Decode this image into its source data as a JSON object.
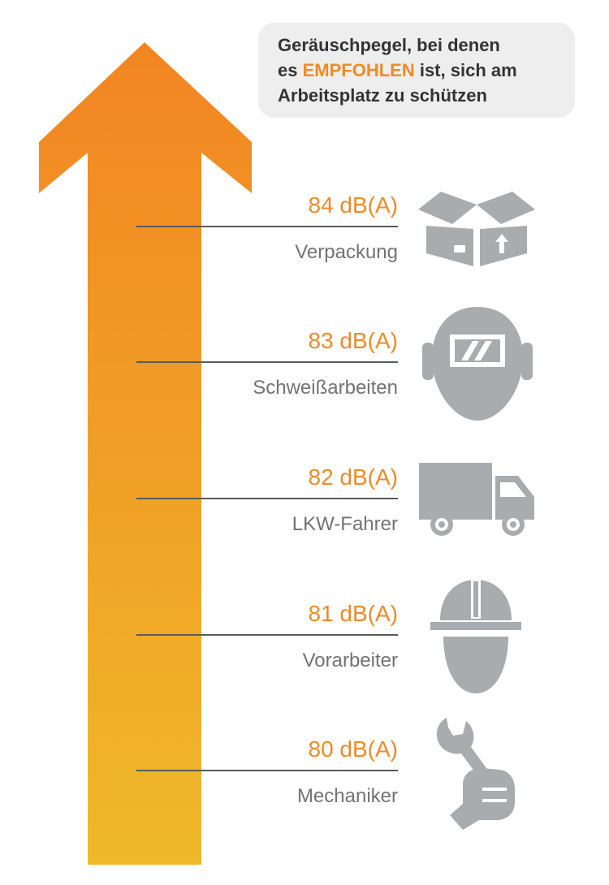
{
  "title": {
    "line1": "Geräuschpegel, bei denen",
    "line2_prefix": "es ",
    "line2_highlight": "EMPFOHLEN",
    "line2_suffix": " ist, sich am",
    "line3": "Arbeitsplatz zu schützen"
  },
  "colors": {
    "arrow_top": "#f28523",
    "arrow_bottom": "#efb92a",
    "accent": "#f28a23",
    "icon": "#a9acae",
    "rule": "#5a5a5a"
  },
  "levels": [
    {
      "db": "84 dB(A)",
      "label": "Verpackung",
      "icon": "box-icon"
    },
    {
      "db": "83 dB(A)",
      "label": "Schweißarbeiten",
      "icon": "welding-mask-icon"
    },
    {
      "db": "82 dB(A)",
      "label": "LKW-Fahrer",
      "icon": "truck-icon"
    },
    {
      "db": "81 dB(A)",
      "label": "Vorarbeiter",
      "icon": "hard-hat-worker-icon"
    },
    {
      "db": "80 dB(A)",
      "label": "Mechaniker",
      "icon": "wrench-hand-icon"
    }
  ]
}
